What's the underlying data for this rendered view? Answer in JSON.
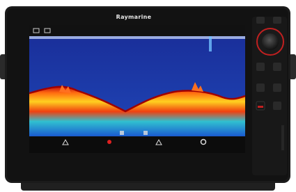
{
  "header": {
    "brand": "Raymarine"
  }
}
